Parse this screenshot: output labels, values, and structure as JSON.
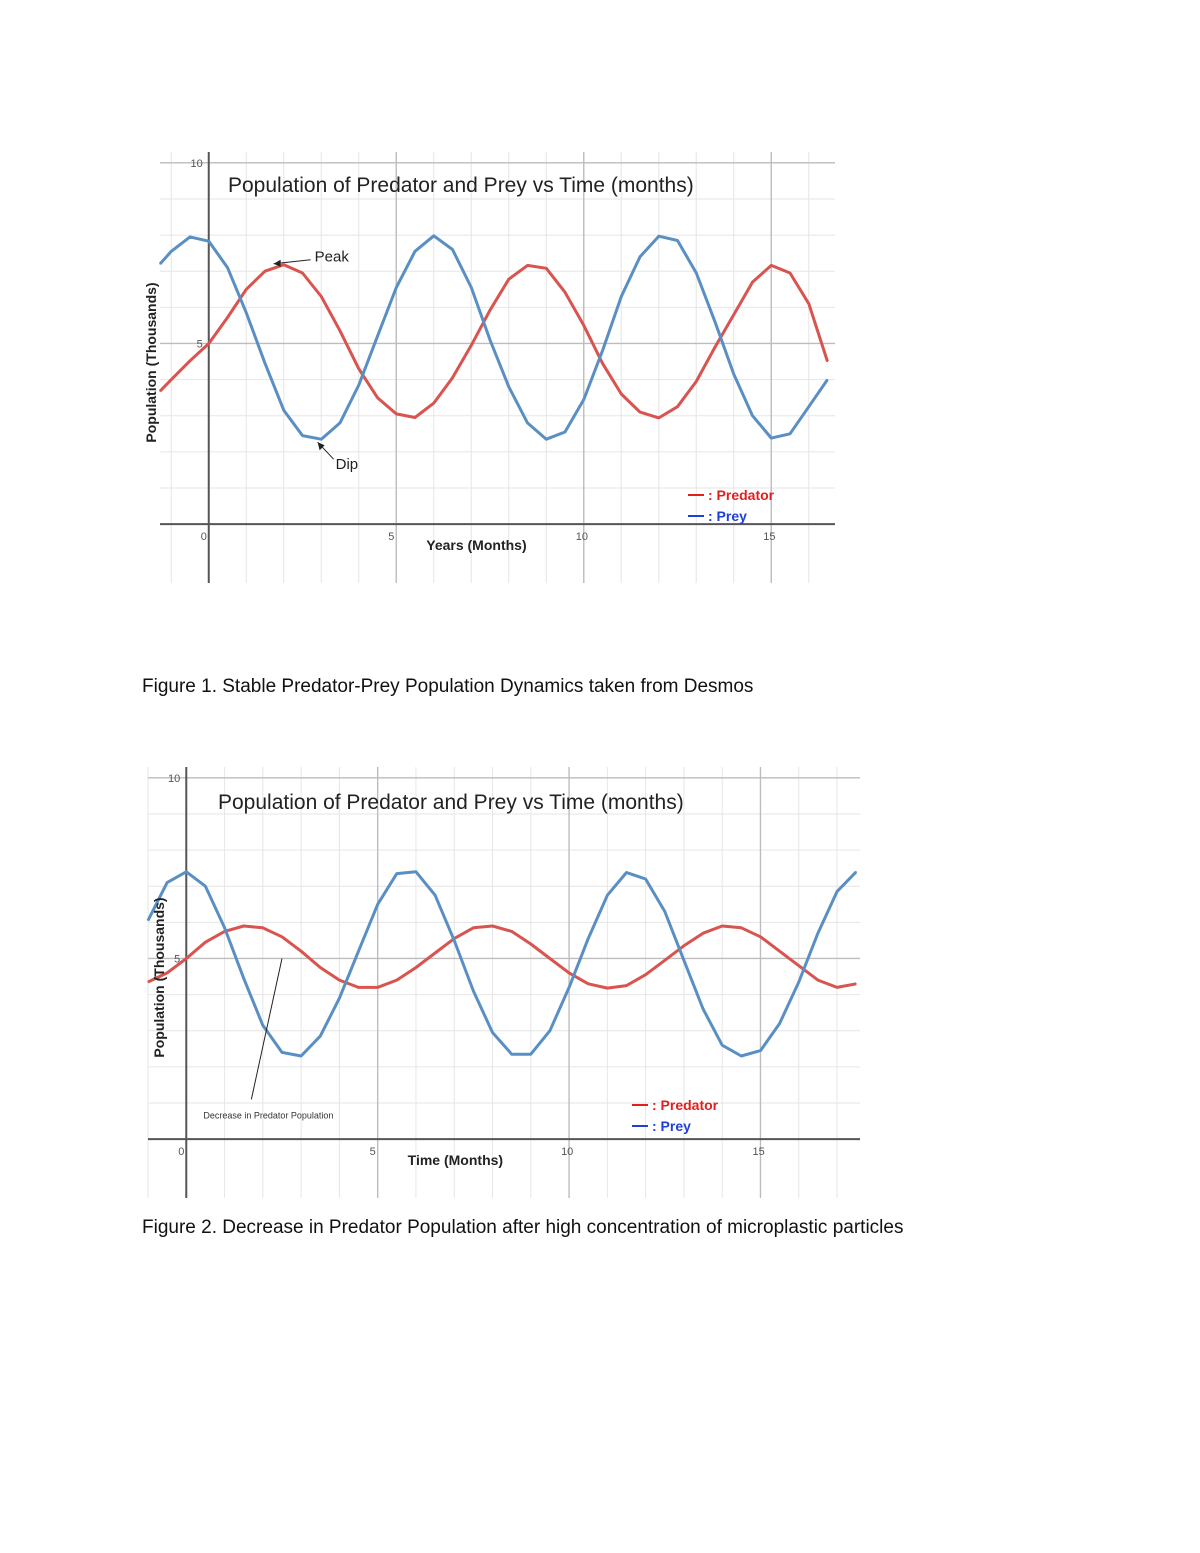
{
  "figures": [
    {
      "caption": "Figure 1. Stable Predator-Prey Population Dynamics taken from Desmos",
      "annotations": [
        "Peak",
        "Dip"
      ]
    },
    {
      "caption": "Figure 2. Decrease in Predator Population after high concentration of microplastic particles",
      "annotations": [
        "Decrease in Predator Population"
      ]
    }
  ],
  "chart_data": [
    {
      "type": "line",
      "title": "Population of Predator and Prey vs Time (months)",
      "xlabel": "Years (Months)",
      "ylabel": "Population (Thousands)",
      "xlim": [
        -1.3,
        16.7
      ],
      "ylim": [
        -0.8,
        10.3
      ],
      "x_ticks": [
        0,
        5,
        10,
        15
      ],
      "y_ticks": [
        5,
        10
      ],
      "grid": true,
      "legend": "bottom-right",
      "x": [
        -1.3,
        -1.0,
        -0.5,
        0.0,
        0.5,
        1.0,
        1.5,
        2.0,
        2.5,
        3.0,
        3.5,
        4.0,
        4.5,
        5.0,
        5.5,
        6.0,
        6.5,
        7.0,
        7.5,
        8.0,
        8.5,
        9.0,
        9.5,
        10.0,
        10.5,
        11.0,
        11.5,
        12.0,
        12.5,
        13.0,
        13.5,
        14.0,
        14.5,
        15.0,
        15.5,
        16.0,
        16.5
      ],
      "series": [
        {
          "name": "Predator",
          "color": "#d9534f",
          "values": [
            3.68,
            4.0,
            4.52,
            5.0,
            5.72,
            6.5,
            7.0,
            7.18,
            6.95,
            6.3,
            5.35,
            4.3,
            3.5,
            3.05,
            2.95,
            3.35,
            4.05,
            4.95,
            5.92,
            6.78,
            7.16,
            7.08,
            6.42,
            5.5,
            4.45,
            3.6,
            3.1,
            2.94,
            3.25,
            3.95,
            4.9,
            5.8,
            6.7,
            7.16,
            6.95,
            6.1,
            4.5
          ]
        },
        {
          "name": "Prey",
          "color": "#5a8fc4",
          "values": [
            7.2,
            7.55,
            7.95,
            7.83,
            7.1,
            5.85,
            4.45,
            3.15,
            2.45,
            2.35,
            2.8,
            3.85,
            5.2,
            6.55,
            7.55,
            7.98,
            7.6,
            6.55,
            5.1,
            3.8,
            2.8,
            2.35,
            2.55,
            3.45,
            4.8,
            6.3,
            7.4,
            7.97,
            7.85,
            6.95,
            5.6,
            4.15,
            3.0,
            2.38,
            2.5,
            3.25,
            4.0
          ]
        }
      ]
    },
    {
      "type": "line",
      "title": "Population of Predator and Prey vs Time (months)",
      "xlabel": "Time (Months)",
      "ylabel": "Population (Thousands)",
      "xlim": [
        -1.0,
        17.6
      ],
      "ylim": [
        -0.8,
        10.3
      ],
      "x_ticks": [
        0,
        5,
        10,
        15
      ],
      "y_ticks": [
        5,
        10
      ],
      "grid": true,
      "legend": "bottom-right",
      "x": [
        -1.0,
        -0.5,
        0.0,
        0.5,
        1.0,
        1.5,
        2.0,
        2.5,
        3.0,
        3.5,
        4.0,
        4.5,
        5.0,
        5.5,
        6.0,
        6.5,
        7.0,
        7.5,
        8.0,
        8.5,
        9.0,
        9.5,
        10.0,
        10.5,
        11.0,
        11.5,
        12.0,
        12.5,
        13.0,
        13.5,
        14.0,
        14.5,
        15.0,
        15.5,
        16.0,
        16.5,
        17.0,
        17.5
      ],
      "series": [
        {
          "name": "Predator",
          "color": "#d9534f",
          "values": [
            4.35,
            4.6,
            5.0,
            5.45,
            5.75,
            5.9,
            5.85,
            5.6,
            5.2,
            4.75,
            4.4,
            4.2,
            4.2,
            4.4,
            4.75,
            5.15,
            5.55,
            5.85,
            5.9,
            5.75,
            5.4,
            5.0,
            4.6,
            4.3,
            4.18,
            4.25,
            4.55,
            4.95,
            5.35,
            5.7,
            5.9,
            5.85,
            5.6,
            5.2,
            4.8,
            4.4,
            4.2,
            4.3
          ]
        },
        {
          "name": "Prey",
          "color": "#5a8fc4",
          "values": [
            6.05,
            7.1,
            7.4,
            7.0,
            5.85,
            4.45,
            3.15,
            2.4,
            2.3,
            2.85,
            3.9,
            5.2,
            6.5,
            7.35,
            7.4,
            6.75,
            5.5,
            4.1,
            2.95,
            2.35,
            2.35,
            3.0,
            4.2,
            5.55,
            6.75,
            7.38,
            7.2,
            6.3,
            4.95,
            3.6,
            2.6,
            2.3,
            2.45,
            3.2,
            4.35,
            5.7,
            6.85,
            7.4
          ]
        }
      ]
    }
  ]
}
